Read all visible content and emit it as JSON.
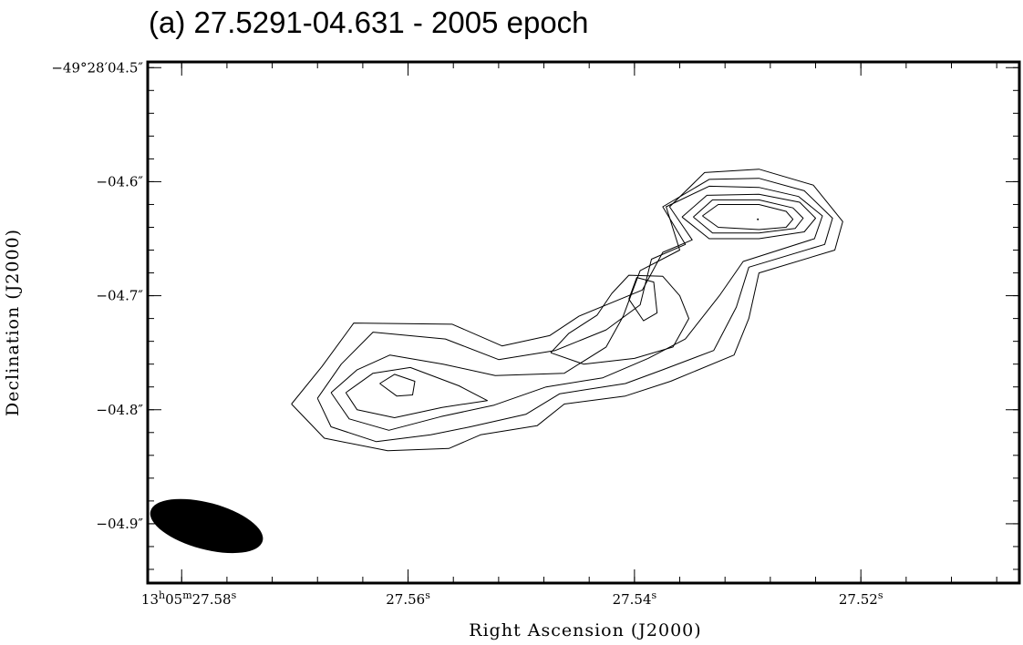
{
  "chart_data": {
    "type": "contour",
    "title": "(a) 27.5291-04.631 - 2005 epoch",
    "xlabel": "Right Ascension (J2000)",
    "ylabel": "Declination (J2000)",
    "x_axis": {
      "unit": "seconds of RA (13h05m + s)",
      "range": [
        27.583,
        27.506
      ],
      "direction": "decreasing-to-right",
      "ticks": [
        {
          "value": 27.58,
          "label": {
            "prefix": "13",
            "h": "h",
            "mid": "05",
            "m": "m",
            "main": "27.58",
            "s": "s"
          }
        },
        {
          "value": 27.56,
          "label": {
            "main": "27.56",
            "s": "s"
          }
        },
        {
          "value": 27.54,
          "label": {
            "main": "27.54",
            "s": "s"
          }
        },
        {
          "value": 27.52,
          "label": {
            "main": "27.52",
            "s": "s"
          }
        }
      ]
    },
    "y_axis": {
      "unit": "arcsec offset (Dec = -49°28′ + value)",
      "range": [
        -4.952,
        -4.495
      ],
      "ticks": [
        {
          "value": -4.5,
          "label": "−49°28′04.5″"
        },
        {
          "value": -4.6,
          "label": "−04.6″"
        },
        {
          "value": -4.7,
          "label": "−04.7″"
        },
        {
          "value": -4.8,
          "label": "−04.8″"
        },
        {
          "value": -4.9,
          "label": "−04.9″"
        }
      ]
    },
    "contours": [
      {
        "level": 1,
        "points": [
          [
            27.5703,
            -4.795
          ],
          [
            27.5676,
            -4.762
          ],
          [
            27.5648,
            -4.724
          ],
          [
            27.5561,
            -4.725
          ],
          [
            27.5517,
            -4.744
          ],
          [
            27.5475,
            -4.735
          ],
          [
            27.5449,
            -4.718
          ],
          [
            27.5393,
            -4.695
          ],
          [
            27.5375,
            -4.662
          ],
          [
            27.5349,
            -4.651
          ],
          [
            27.5369,
            -4.622
          ],
          [
            27.5338,
            -4.592
          ],
          [
            27.529,
            -4.589
          ],
          [
            27.5242,
            -4.603
          ],
          [
            27.5216,
            -4.635
          ],
          [
            27.5223,
            -4.66
          ],
          [
            27.529,
            -4.68
          ],
          [
            27.5299,
            -4.72
          ],
          [
            27.5312,
            -4.752
          ],
          [
            27.5368,
            -4.775
          ],
          [
            27.5408,
            -4.788
          ],
          [
            27.5462,
            -4.795
          ],
          [
            27.5486,
            -4.814
          ],
          [
            27.5536,
            -4.822
          ],
          [
            27.5564,
            -4.834
          ],
          [
            27.5618,
            -4.836
          ],
          [
            27.5674,
            -4.825
          ],
          [
            27.5703,
            -4.795
          ]
        ]
      },
      {
        "level": 2,
        "points": [
          [
            27.568,
            -4.79
          ],
          [
            27.5659,
            -4.76
          ],
          [
            27.5631,
            -4.732
          ],
          [
            27.5567,
            -4.738
          ],
          [
            27.552,
            -4.756
          ],
          [
            27.547,
            -4.748
          ],
          [
            27.5425,
            -4.73
          ],
          [
            27.5395,
            -4.708
          ],
          [
            27.5385,
            -4.668
          ],
          [
            27.5355,
            -4.655
          ],
          [
            27.5375,
            -4.622
          ],
          [
            27.5334,
            -4.598
          ],
          [
            27.529,
            -4.597
          ],
          [
            27.525,
            -4.608
          ],
          [
            27.5225,
            -4.632
          ],
          [
            27.5232,
            -4.655
          ],
          [
            27.5299,
            -4.675
          ],
          [
            27.531,
            -4.71
          ],
          [
            27.533,
            -4.748
          ],
          [
            27.5375,
            -4.765
          ],
          [
            27.5408,
            -4.777
          ],
          [
            27.5466,
            -4.786
          ],
          [
            27.5496,
            -4.804
          ],
          [
            27.5545,
            -4.815
          ],
          [
            27.558,
            -4.822
          ],
          [
            27.5628,
            -4.828
          ],
          [
            27.5668,
            -4.815
          ],
          [
            27.568,
            -4.79
          ]
        ]
      },
      {
        "level": 3,
        "points": [
          [
            27.5668,
            -4.785
          ],
          [
            27.5645,
            -4.765
          ],
          [
            27.5616,
            -4.752
          ],
          [
            27.5569,
            -4.76
          ],
          [
            27.5523,
            -4.77
          ],
          [
            27.5462,
            -4.768
          ],
          [
            27.5425,
            -4.745
          ],
          [
            27.541,
            -4.718
          ],
          [
            27.5395,
            -4.678
          ],
          [
            27.536,
            -4.66
          ],
          [
            27.5372,
            -4.622
          ],
          [
            27.5334,
            -4.604
          ],
          [
            27.529,
            -4.605
          ],
          [
            27.5255,
            -4.613
          ],
          [
            27.5234,
            -4.63
          ],
          [
            27.5241,
            -4.65
          ],
          [
            27.5304,
            -4.67
          ],
          [
            27.5325,
            -4.7
          ],
          [
            27.5355,
            -4.738
          ],
          [
            27.5388,
            -4.755
          ],
          [
            27.5428,
            -4.772
          ],
          [
            27.5478,
            -4.78
          ],
          [
            27.5524,
            -4.796
          ],
          [
            27.5571,
            -4.806
          ],
          [
            27.5617,
            -4.818
          ],
          [
            27.5652,
            -4.808
          ],
          [
            27.5668,
            -4.785
          ]
        ]
      },
      {
        "level": 4,
        "points": [
          [
            27.5655,
            -4.785
          ],
          [
            27.5631,
            -4.768
          ],
          [
            27.5598,
            -4.763
          ],
          [
            27.5555,
            -4.779
          ],
          [
            27.553,
            -4.792
          ],
          [
            27.557,
            -4.798
          ],
          [
            27.5612,
            -4.807
          ],
          [
            27.5645,
            -4.8
          ],
          [
            27.5655,
            -4.785
          ]
        ]
      },
      {
        "level": 4,
        "points": [
          [
            27.5474,
            -4.75
          ],
          [
            27.5458,
            -4.733
          ],
          [
            27.5433,
            -4.717
          ],
          [
            27.542,
            -4.698
          ],
          [
            27.5405,
            -4.682
          ],
          [
            27.5375,
            -4.683
          ],
          [
            27.536,
            -4.7
          ],
          [
            27.5352,
            -4.72
          ],
          [
            27.5366,
            -4.745
          ],
          [
            27.54,
            -4.755
          ],
          [
            27.5445,
            -4.76
          ],
          [
            27.5474,
            -4.75
          ]
        ]
      },
      {
        "level": 4,
        "points": [
          [
            27.5358,
            -4.631
          ],
          [
            27.5336,
            -4.612
          ],
          [
            27.529,
            -4.611
          ],
          [
            27.5254,
            -4.618
          ],
          [
            27.524,
            -4.632
          ],
          [
            27.525,
            -4.644
          ],
          [
            27.529,
            -4.65
          ],
          [
            27.5334,
            -4.65
          ],
          [
            27.5358,
            -4.631
          ]
        ]
      },
      {
        "level": 5,
        "points": [
          [
            27.5625,
            -4.777
          ],
          [
            27.5612,
            -4.769
          ],
          [
            27.5594,
            -4.775
          ],
          [
            27.5596,
            -4.787
          ],
          [
            27.561,
            -4.788
          ],
          [
            27.5625,
            -4.777
          ]
        ]
      },
      {
        "level": 5,
        "points": [
          [
            27.5405,
            -4.703
          ],
          [
            27.5398,
            -4.684
          ],
          [
            27.5383,
            -4.688
          ],
          [
            27.538,
            -4.715
          ],
          [
            27.5392,
            -4.722
          ],
          [
            27.5405,
            -4.703
          ]
        ]
      },
      {
        "level": 5,
        "points": [
          [
            27.5348,
            -4.631
          ],
          [
            27.5331,
            -4.616
          ],
          [
            27.529,
            -4.616
          ],
          [
            27.526,
            -4.623
          ],
          [
            27.5251,
            -4.632
          ],
          [
            27.5258,
            -4.641
          ],
          [
            27.529,
            -4.645
          ],
          [
            27.5331,
            -4.645
          ],
          [
            27.5348,
            -4.631
          ]
        ]
      },
      {
        "level": 6,
        "points": [
          [
            27.534,
            -4.63
          ],
          [
            27.5326,
            -4.62
          ],
          [
            27.529,
            -4.62
          ],
          [
            27.5266,
            -4.626
          ],
          [
            27.526,
            -4.633
          ],
          [
            27.5266,
            -4.64
          ],
          [
            27.529,
            -4.642
          ],
          [
            27.5326,
            -4.64
          ],
          [
            27.534,
            -4.63
          ]
        ]
      }
    ],
    "peak_marker": [
      27.5291,
      -4.633
    ],
    "beam": {
      "center": [
        27.5778,
        -4.902
      ],
      "major_arcsec": 0.082,
      "minor_arcsec": 0.033,
      "angle_deg": -15
    },
    "grid": false,
    "legend": "none"
  }
}
